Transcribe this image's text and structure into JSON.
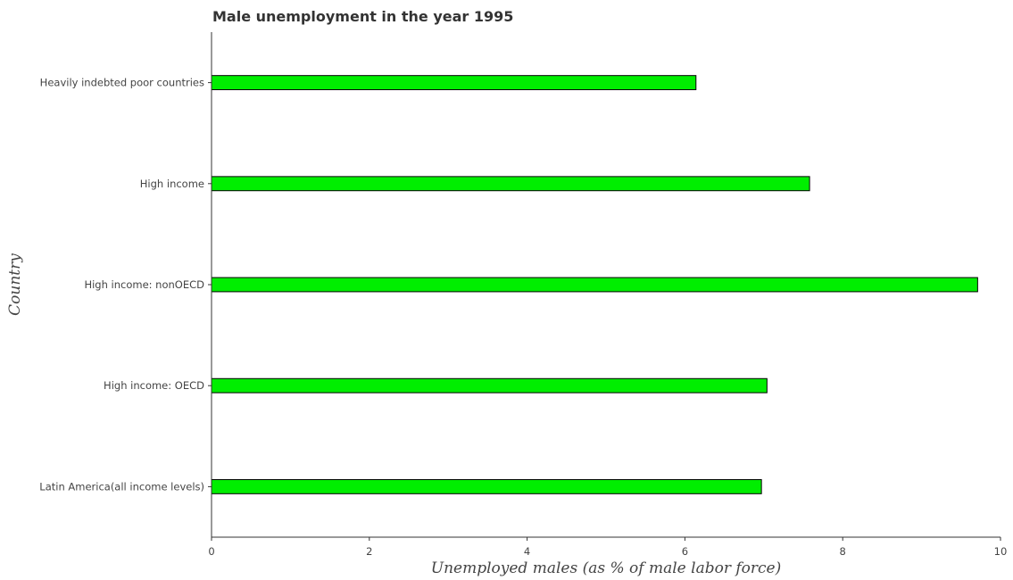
{
  "chart_data": {
    "type": "bar",
    "orientation": "horizontal",
    "title": "Male unemployment in the year 1995",
    "xlabel": "Unemployed males (as % of male labor force)",
    "ylabel": "Country",
    "xlim": [
      0,
      10
    ],
    "xticks": [
      0,
      2,
      4,
      6,
      8,
      10
    ],
    "grid": false,
    "categories": [
      "Heavily indebted poor countries",
      "High income",
      "High income: nonOECD",
      "High income: OECD",
      "Latin America(all income levels)"
    ],
    "values": [
      6.14,
      7.58,
      9.71,
      7.04,
      6.97
    ],
    "colors": {
      "bar": "#00ee00",
      "bar_border": "#000000"
    }
  }
}
